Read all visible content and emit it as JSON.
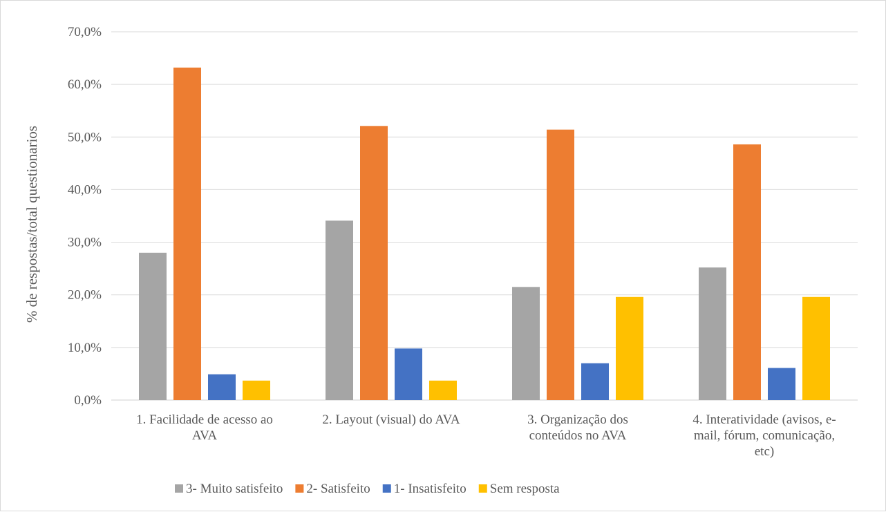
{
  "chart_data": {
    "type": "bar",
    "title": "",
    "xlabel": "",
    "ylabel": "% de respostas/total questionarios",
    "ylim": [
      0,
      70
    ],
    "yticks": [
      0,
      10,
      20,
      30,
      40,
      50,
      60,
      70
    ],
    "ytick_labels": [
      "0,0%",
      "10,0%",
      "20,0%",
      "30,0%",
      "40,0%",
      "50,0%",
      "60,0%",
      "70,0%"
    ],
    "grid": true,
    "legend_position": "bottom",
    "categories": [
      [
        "1.   Facilidade de acesso ao",
        "AVA"
      ],
      [
        "2.   Layout (visual) do AVA"
      ],
      [
        "3.   Organização dos",
        "conteúdos no AVA"
      ],
      [
        "4.   Interatividade (avisos, e-",
        "mail, fórum, comunicação,",
        "etc)"
      ]
    ],
    "series": [
      {
        "name": "3- Muito satisfeito",
        "color": "#a5a5a5",
        "values": [
          28.0,
          34.1,
          21.5,
          25.2
        ]
      },
      {
        "name": "2- Satisfeito",
        "color": "#ed7d31",
        "values": [
          63.2,
          52.1,
          51.4,
          48.6
        ]
      },
      {
        "name": "1- Insatisfeito",
        "color": "#4472c4",
        "values": [
          4.9,
          9.8,
          7.0,
          6.1
        ]
      },
      {
        "name": "Sem resposta",
        "color": "#ffc000",
        "values": [
          3.7,
          3.7,
          19.6,
          19.6
        ]
      }
    ]
  }
}
